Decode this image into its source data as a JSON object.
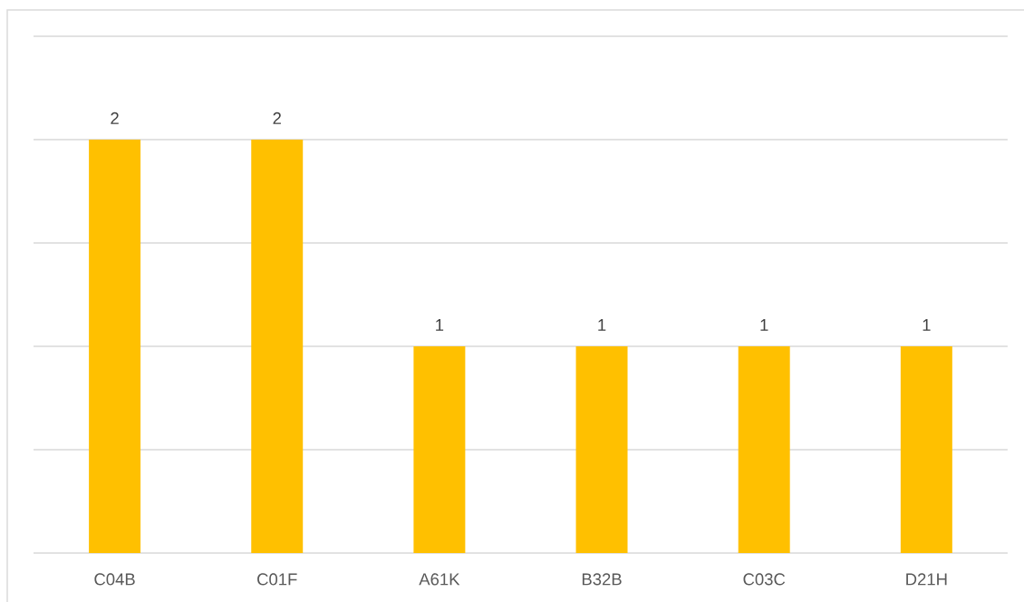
{
  "chart_data": {
    "type": "bar",
    "categories": [
      "C04B",
      "C01F",
      "A61K",
      "B32B",
      "C03C",
      "D21H"
    ],
    "values": [
      2,
      2,
      1,
      1,
      1,
      1
    ],
    "color": "#ffc000",
    "ylim": [
      0,
      2.5
    ],
    "yticks": [
      {
        "value": 0,
        "label": null
      },
      {
        "value": 0.5,
        "label": null
      },
      {
        "value": 1,
        "label": null
      },
      {
        "value": 1.5,
        "label": null
      },
      {
        "value": 2,
        "label": null
      },
      {
        "value": 2.5,
        "label": null
      }
    ],
    "grid": "y",
    "data_labels": true,
    "tick_labels": "x"
  }
}
